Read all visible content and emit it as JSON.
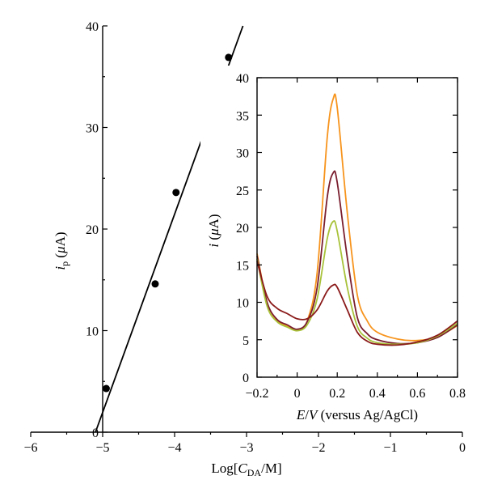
{
  "chart_data": [
    {
      "type": "scatter",
      "xlabel": "Log[C_DA/M]",
      "ylabel": "i_p (μA)",
      "xlim": [
        -6,
        0
      ],
      "ylim": [
        0,
        40
      ],
      "x_ticks": [
        -6,
        -5,
        -4,
        -3,
        -2,
        -1,
        0
      ],
      "y_ticks": [
        0,
        10,
        20,
        30,
        40
      ],
      "x_tick_labels": [
        "−6",
        "−5",
        "−4",
        "−3",
        "−2",
        "−1",
        "0"
      ],
      "y_tick_labels": [
        "0",
        "10",
        "20",
        "30",
        "40"
      ],
      "series": [
        {
          "points": [
            {
              "x": -4.95,
              "y": 4.3
            },
            {
              "x": -4.27,
              "y": 14.6
            },
            {
              "x": -3.98,
              "y": 23.6
            },
            {
              "x": -3.25,
              "y": 36.9
            }
          ]
        }
      ],
      "fit_line": {
        "x": [
          -5.1,
          -3.05
        ],
        "y": [
          0,
          40
        ]
      },
      "grid": false
    },
    {
      "type": "line",
      "inset": true,
      "xlabel": "E/V (versus Ag/AgCl)",
      "ylabel": "i (μA)",
      "xlim": [
        -0.2,
        0.8
      ],
      "ylim": [
        0,
        40
      ],
      "x_ticks": [
        -0.2,
        0,
        0.2,
        0.4,
        0.6,
        0.8
      ],
      "y_ticks": [
        0,
        5,
        10,
        15,
        20,
        25,
        30,
        35,
        40
      ],
      "x_tick_labels": [
        "−0.2",
        "0",
        "0.2",
        "0.4",
        "0.6",
        "0.8"
      ],
      "y_tick_labels": [
        "0",
        "5",
        "10",
        "15",
        "20",
        "25",
        "30",
        "35",
        "40"
      ],
      "series": [
        {
          "color": "#F7941D",
          "x": [
            -0.2,
            -0.15,
            -0.1,
            -0.05,
            0,
            0.05,
            0.1,
            0.15,
            0.18,
            0.2,
            0.25,
            0.3,
            0.35,
            0.4,
            0.5,
            0.6,
            0.7,
            0.8
          ],
          "y": [
            16.5,
            10.0,
            7.6,
            6.8,
            6.3,
            7.5,
            14.0,
            32.0,
            37.2,
            36.0,
            22.0,
            11.0,
            7.5,
            6.0,
            5.1,
            4.9,
            5.4,
            6.9
          ]
        },
        {
          "color": "#7A1E2E",
          "x": [
            -0.2,
            -0.15,
            -0.1,
            -0.05,
            0,
            0.05,
            0.1,
            0.15,
            0.18,
            0.2,
            0.25,
            0.3,
            0.35,
            0.4,
            0.5,
            0.6,
            0.7,
            0.8
          ],
          "y": [
            16.2,
            10.0,
            7.7,
            7.0,
            6.4,
            7.4,
            12.0,
            24.0,
            27.3,
            26.0,
            16.0,
            8.0,
            5.8,
            5.0,
            4.5,
            4.6,
            5.3,
            7.0
          ]
        },
        {
          "color": "#A8C23A",
          "x": [
            -0.2,
            -0.15,
            -0.1,
            -0.05,
            0,
            0.05,
            0.1,
            0.15,
            0.18,
            0.2,
            0.25,
            0.3,
            0.35,
            0.4,
            0.5,
            0.6,
            0.7,
            0.8
          ],
          "y": [
            15.8,
            9.5,
            7.4,
            6.7,
            6.2,
            7.0,
            10.5,
            18.5,
            20.8,
            19.5,
            12.0,
            6.8,
            5.2,
            4.6,
            4.4,
            4.6,
            5.5,
            7.2
          ]
        },
        {
          "color": "#8B1A1A",
          "x": [
            -0.2,
            -0.15,
            -0.1,
            -0.05,
            0,
            0.05,
            0.1,
            0.15,
            0.18,
            0.2,
            0.25,
            0.3,
            0.35,
            0.4,
            0.5,
            0.6,
            0.7,
            0.8
          ],
          "y": [
            15.5,
            10.8,
            9.2,
            8.5,
            7.8,
            7.8,
            9.0,
            11.5,
            12.3,
            12.0,
            9.0,
            6.0,
            4.8,
            4.4,
            4.3,
            4.7,
            5.6,
            7.5
          ]
        }
      ],
      "grid": false
    }
  ]
}
